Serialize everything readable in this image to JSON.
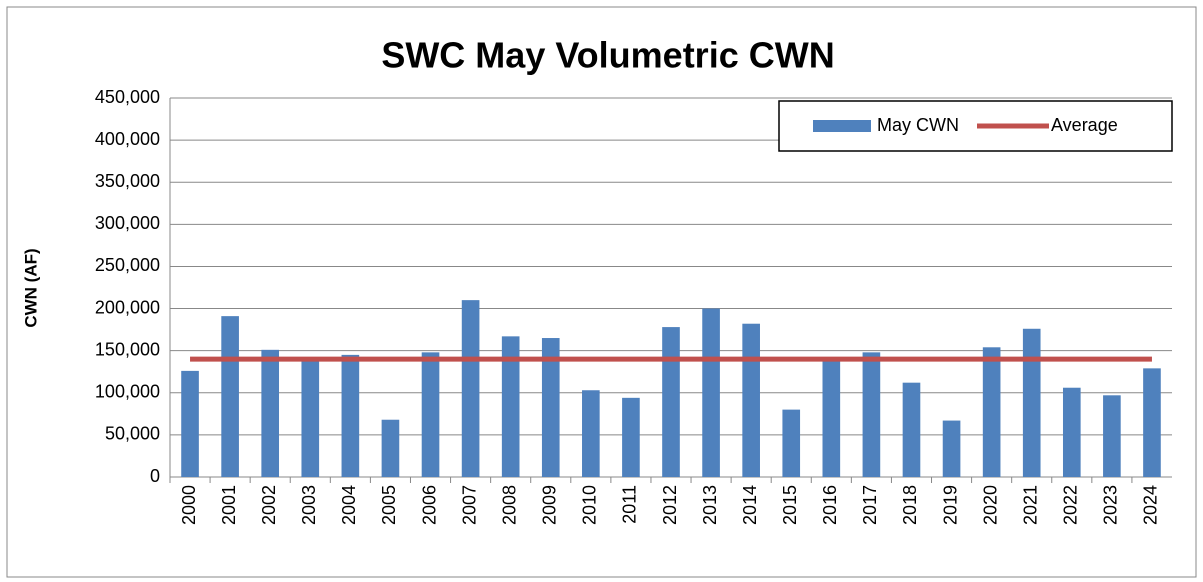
{
  "chart_data": {
    "type": "bar",
    "title": "SWC May Volumetric CWN",
    "y_label": "CWN (AF)",
    "categories": [
      "2000",
      "2001",
      "2002",
      "2003",
      "2004",
      "2005",
      "2006",
      "2007",
      "2008",
      "2009",
      "2010",
      "2011",
      "2012",
      "2013",
      "2014",
      "2015",
      "2016",
      "2017",
      "2018",
      "2019",
      "2020",
      "2021",
      "2022",
      "2023",
      "2024"
    ],
    "series": [
      {
        "name": "May CWN",
        "type": "bar",
        "color": "#4f81bd",
        "values": [
          126000,
          191000,
          151000,
          139000,
          145000,
          68000,
          148000,
          210000,
          167000,
          165000,
          103000,
          94000,
          178000,
          200000,
          182000,
          80000,
          141000,
          148000,
          112000,
          67000,
          154000,
          176000,
          106000,
          97000,
          129000
        ]
      },
      {
        "name": "Average",
        "type": "line",
        "color": "#c0504d",
        "values": [
          140000,
          140000,
          140000,
          140000,
          140000,
          140000,
          140000,
          140000,
          140000,
          140000,
          140000,
          140000,
          140000,
          140000,
          140000,
          140000,
          140000,
          140000,
          140000,
          140000,
          140000,
          140000,
          140000,
          140000,
          140000
        ]
      }
    ],
    "ylim": [
      0,
      450000
    ],
    "yticks": [
      0,
      {
        "value": 50000,
        "label": "50,000"
      },
      {
        "value": 100000,
        "label": "100,000"
      },
      {
        "value": 150000,
        "label": "150,000"
      },
      {
        "value": 200000,
        "label": "200,000"
      },
      {
        "value": 250000,
        "label": "250,000"
      },
      {
        "value": 300000,
        "label": "300,000"
      },
      {
        "value": 350000,
        "label": "350,000"
      },
      {
        "value": 400000,
        "label": "400,000"
      },
      {
        "value": 450000,
        "label": "450,000"
      }
    ],
    "grid": true,
    "legend": "top-right"
  }
}
